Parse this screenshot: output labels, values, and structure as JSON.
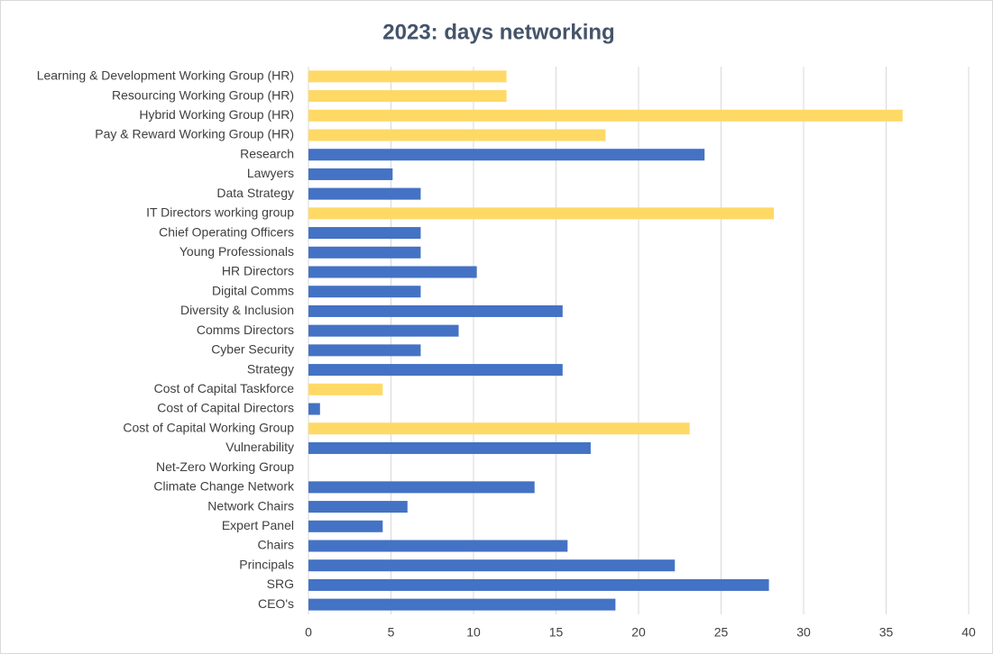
{
  "chart_data": {
    "type": "bar",
    "orientation": "horizontal",
    "title": "2023: days networking",
    "categories": [
      "Learning & Development Working Group (HR)",
      "Resourcing Working Group (HR)",
      "Hybrid Working Group (HR)",
      "Pay & Reward Working Group (HR)",
      "Research",
      "Lawyers",
      "Data Strategy",
      "IT Directors working group",
      "Chief Operating Officers",
      "Young Professionals",
      "HR Directors",
      "Digital Comms",
      "Diversity & Inclusion",
      "Comms Directors",
      "Cyber Security",
      "Strategy",
      "Cost of Capital Taskforce",
      "Cost of Capital Directors",
      "Cost of Capital Working Group",
      "Vulnerability",
      "Net-Zero Working Group",
      "Climate Change Network",
      "Network Chairs",
      "Expert Panel",
      "Chairs",
      "Principals",
      "SRG",
      "CEO's"
    ],
    "values": [
      12,
      12,
      36,
      18,
      24,
      5.1,
      6.8,
      28.2,
      6.8,
      6.8,
      10.2,
      6.8,
      15.4,
      9.1,
      6.8,
      15.4,
      4.5,
      0.7,
      23.1,
      17.1,
      0,
      13.7,
      6,
      4.5,
      15.7,
      22.2,
      27.9,
      18.6
    ],
    "colors": [
      "#ffd966",
      "#ffd966",
      "#ffd966",
      "#ffd966",
      "#4472c4",
      "#4472c4",
      "#4472c4",
      "#ffd966",
      "#4472c4",
      "#4472c4",
      "#4472c4",
      "#4472c4",
      "#4472c4",
      "#4472c4",
      "#4472c4",
      "#4472c4",
      "#ffd966",
      "#4472c4",
      "#ffd966",
      "#4472c4",
      "#4472c4",
      "#4472c4",
      "#4472c4",
      "#4472c4",
      "#4472c4",
      "#4472c4",
      "#4472c4",
      "#4472c4"
    ],
    "xlim": [
      0,
      40
    ],
    "xticks": [
      0,
      5,
      10,
      15,
      20,
      25,
      30,
      35,
      40
    ],
    "grid": true
  }
}
